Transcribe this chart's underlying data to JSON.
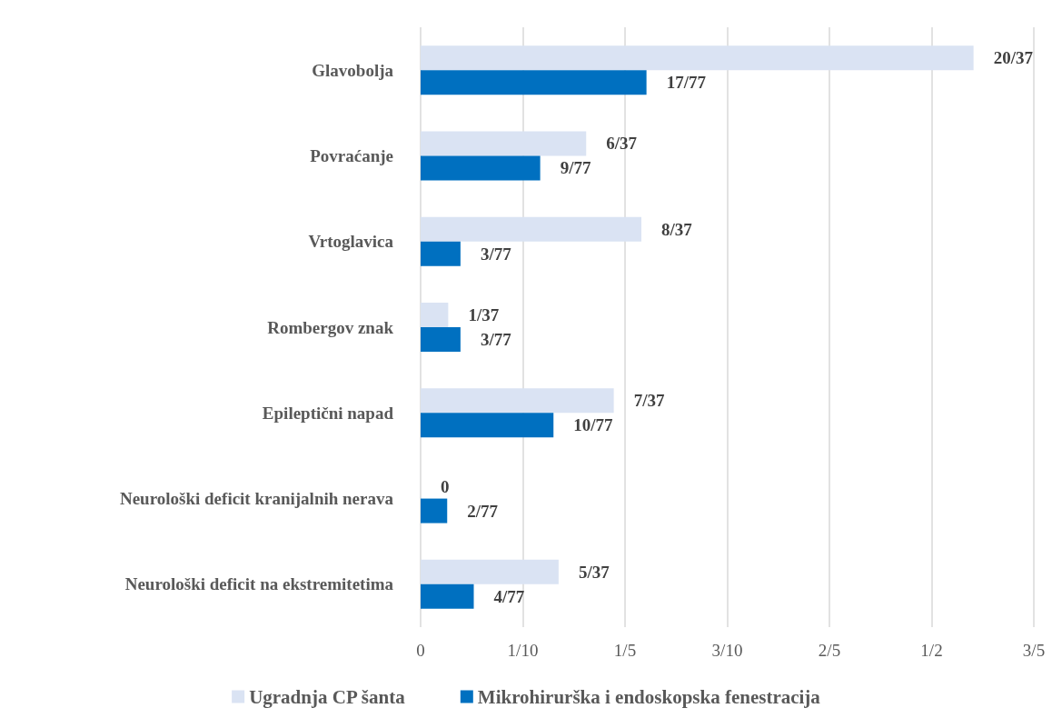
{
  "chart_data": {
    "type": "bar",
    "orientation": "horizontal",
    "categories": [
      "Glavobolja",
      "Povraćanje",
      "Vrtoglavica",
      "Rombergov znak",
      "Epileptični napad",
      "Neurološki deficit kranijalnih nerava",
      "Neurološki deficit na ekstremitetima"
    ],
    "series": [
      {
        "name": "Ugradnja CP šanta",
        "color": "#dae3f3",
        "values": [
          0.541,
          0.162,
          0.216,
          0.027,
          0.189,
          0,
          0.135
        ],
        "value_labels": [
          "20/37",
          "6/37",
          "8/37",
          "1/37",
          "7/37",
          "0",
          "5/37"
        ]
      },
      {
        "name": "Mikrohirurška i endoskopska fenestracija",
        "color": "#0070c0",
        "values": [
          0.221,
          0.117,
          0.039,
          0.039,
          0.13,
          0.026,
          0.052
        ],
        "value_labels": [
          "17/77",
          "9/77",
          "3/77",
          "3/77",
          "10/77",
          "2/77",
          "4/77"
        ]
      }
    ],
    "xlim": [
      0,
      0.6
    ],
    "xticks": [
      0,
      {
        "value": 0.1,
        "label": "1/10"
      },
      {
        "value": 0.2,
        "label": "1/5"
      },
      {
        "value": 0.3,
        "label": "3/10"
      },
      {
        "value": 0.4,
        "label": "2/5"
      },
      {
        "value": 0.5,
        "label": "1/2"
      },
      {
        "value": 0.6,
        "label": "3/5"
      }
    ],
    "grid": "x",
    "legend": "bottom"
  }
}
